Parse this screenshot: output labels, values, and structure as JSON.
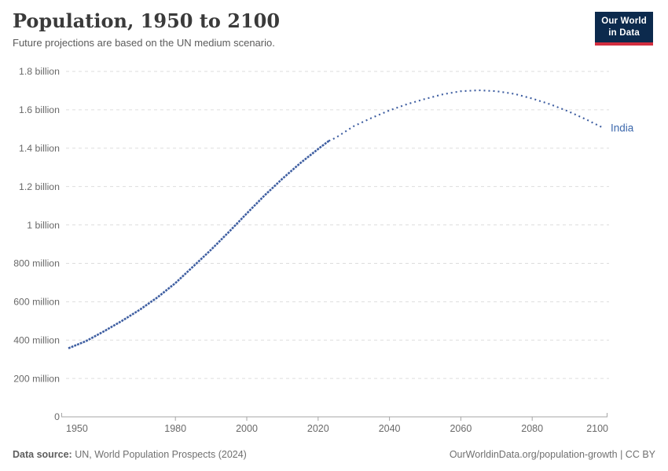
{
  "header": {
    "title": "Population, 1950 to 2100",
    "subtitle": "Future projections are based on the UN medium scenario.",
    "logo_line1": "Our World",
    "logo_line2": "in Data"
  },
  "footer": {
    "source_label": "Data source:",
    "source_text": "UN, World Population Prospects (2024)",
    "credit": "OurWorldinData.org/population-growth | CC BY"
  },
  "colors": {
    "line": "#3e5ea1",
    "entity_label": "#3c68ac",
    "grid": "#dddddd",
    "axis": "#a5a5a5",
    "tick_text": "#696969",
    "logo_bg": "#0c2a4d",
    "logo_bar": "#d22e3f",
    "title_text": "#3a3a3a",
    "subtitle_text": "#5b5b5b"
  },
  "chart_data": {
    "type": "line",
    "title": "Population, 1950 to 2100",
    "subtitle": "Future projections are based on the UN medium scenario.",
    "unit": "people (millions)",
    "xlabel": "",
    "ylabel": "",
    "grid": "horizontal-dashed",
    "legend_position": "line-end-label",
    "xlim": [
      1950,
      2100
    ],
    "ylim_millions": [
      0,
      1800
    ],
    "x_ticks": [
      1950,
      1980,
      2000,
      2020,
      2040,
      2060,
      2080,
      2100
    ],
    "y_ticks": [
      {
        "value": 0,
        "label": "0"
      },
      {
        "value": 200,
        "label": "200 million"
      },
      {
        "value": 400,
        "label": "400 million"
      },
      {
        "value": 600,
        "label": "600 million"
      },
      {
        "value": 800,
        "label": "800 million"
      },
      {
        "value": 1000,
        "label": "1 billion"
      },
      {
        "value": 1200,
        "label": "1.2 billion"
      },
      {
        "value": 1400,
        "label": "1.4 billion"
      },
      {
        "value": 1600,
        "label": "1.6 billion"
      },
      {
        "value": 1800,
        "label": "1.8 billion"
      }
    ],
    "series": [
      {
        "name": "India",
        "color": "#3e5ea1",
        "style_historical": "dense-dotted",
        "style_projection": "dotted",
        "historical": [
          [
            1950,
            357
          ],
          [
            1955,
            395
          ],
          [
            1960,
            446
          ],
          [
            1965,
            500
          ],
          [
            1970,
            558
          ],
          [
            1975,
            623
          ],
          [
            1980,
            697
          ],
          [
            1985,
            784
          ],
          [
            1990,
            871
          ],
          [
            1995,
            964
          ],
          [
            2000,
            1060
          ],
          [
            2005,
            1154
          ],
          [
            2010,
            1241
          ],
          [
            2015,
            1322
          ],
          [
            2020,
            1396
          ],
          [
            2023,
            1438
          ]
        ],
        "projection": [
          [
            2023,
            1438
          ],
          [
            2025,
            1455
          ],
          [
            2030,
            1515
          ],
          [
            2035,
            1558
          ],
          [
            2040,
            1597
          ],
          [
            2045,
            1630
          ],
          [
            2050,
            1657
          ],
          [
            2055,
            1681
          ],
          [
            2060,
            1697
          ],
          [
            2065,
            1702
          ],
          [
            2070,
            1697
          ],
          [
            2075,
            1683
          ],
          [
            2080,
            1659
          ],
          [
            2085,
            1629
          ],
          [
            2090,
            1593
          ],
          [
            2095,
            1551
          ],
          [
            2100,
            1505
          ]
        ]
      }
    ]
  }
}
